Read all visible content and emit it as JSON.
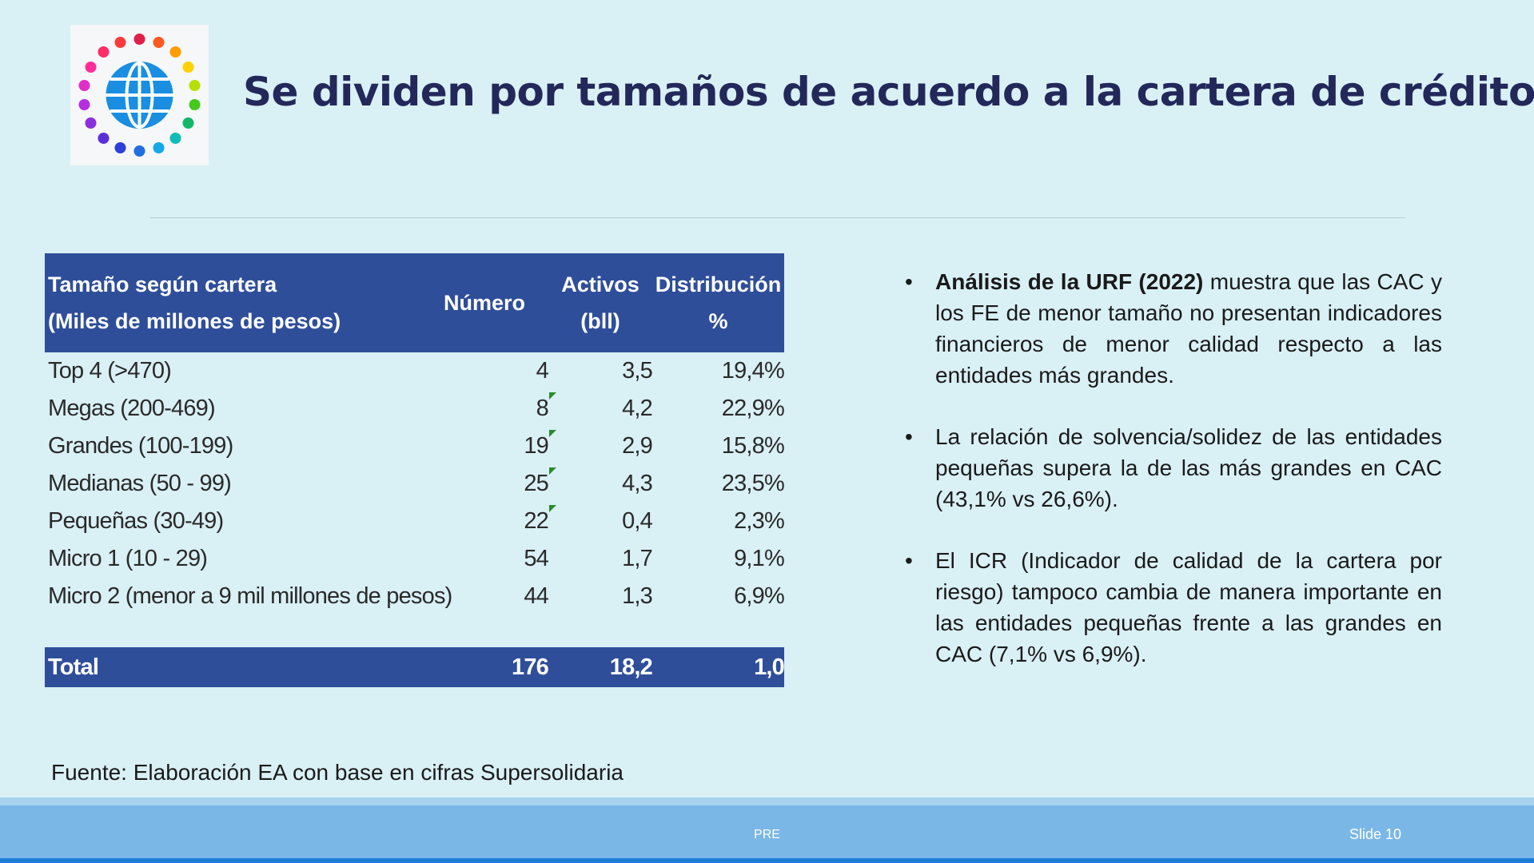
{
  "slide": {
    "title": "Se dividen por tamaños de acuerdo a la cartera de créditos",
    "logo_icon": "globe-people-ring-icon"
  },
  "table": {
    "header": {
      "col1_line1": "Tamaño según cartera",
      "col1_line2": "(Miles de millones de pesos)",
      "col2": "Número",
      "col3_line1": "Activos",
      "col3_line2": "(bll)",
      "col4_line1": "Distribución",
      "col4_line2": "%"
    },
    "rows": [
      {
        "label": "Top 4 (>470)",
        "numero": "4",
        "activos": "3,5",
        "distribucion": "19,4%"
      },
      {
        "label": "Megas (200-469)",
        "numero": "8",
        "activos": "4,2",
        "distribucion": "22,9%"
      },
      {
        "label": "Grandes (100-199)",
        "numero": "19",
        "activos": "2,9",
        "distribucion": "15,8%"
      },
      {
        "label": "Medianas (50 - 99)",
        "numero": "25",
        "activos": "4,3",
        "distribucion": "23,5%"
      },
      {
        "label": "Pequeñas (30-49)",
        "numero": "22",
        "activos": "0,4",
        "distribucion": "2,3%"
      },
      {
        "label": "Micro 1 (10 - 29)",
        "numero": "54",
        "activos": "1,7",
        "distribucion": "9,1%"
      },
      {
        "label": "Micro 2 (menor a 9 mil millones de pesos)",
        "numero": "44",
        "activos": "1,3",
        "distribucion": "6,9%"
      }
    ],
    "total": {
      "label": "Total",
      "numero": "176",
      "activos": "18,2",
      "distribucion": "1,0"
    },
    "header_color": "#2f4e9a",
    "marker_color": "#2a8a2e"
  },
  "bullets": [
    {
      "bold": "Análisis de la URF (2022)",
      "text": " muestra que las CAC y los FE de menor tamaño no presentan indicadores financieros de menor calidad respecto a las entidades más grandes."
    },
    {
      "bold": "",
      "text": " La relación de solvencia/solidez de las entidades pequeñas supera la de las más grandes en CAC (43,1% vs 26,6%)."
    },
    {
      "bold": "",
      "text": " El ICR (Indicador de calidad de la cartera por riesgo) tampoco cambia de manera importante en las entidades pequeñas frente a las grandes en CAC (7,1% vs 6,9%)."
    }
  ],
  "source": "Fuente: Elaboración EA con base en cifras Supersolidaria",
  "footer": {
    "center": "PRE",
    "slide_number": "Slide 10"
  },
  "colors": {
    "background": "#d9f0f5",
    "title": "#23285a",
    "footer": "#7ab7e6"
  }
}
